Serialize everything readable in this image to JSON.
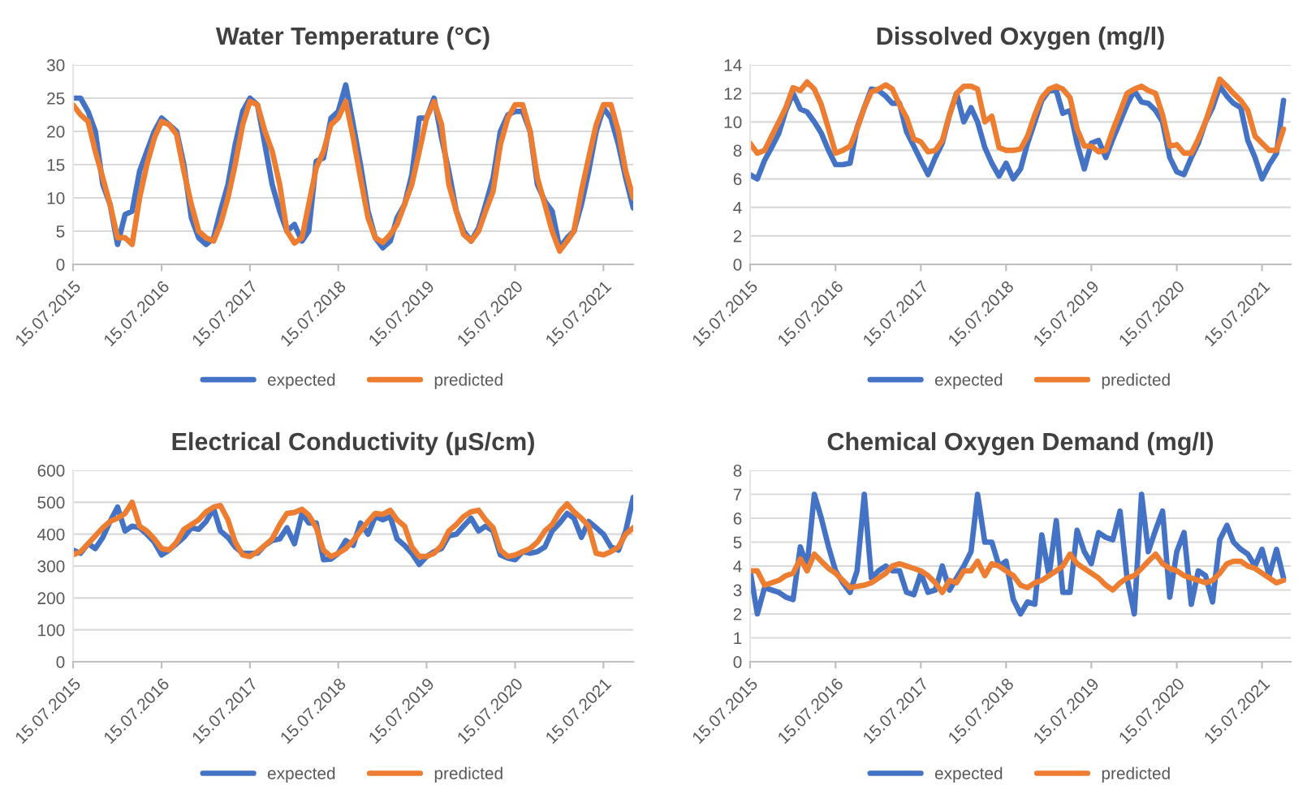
{
  "chart_data": [
    {
      "type": "line",
      "title": "Water Temperature (°C)",
      "x": [
        "2015-07-15",
        "2015-08-15",
        "2015-09-15",
        "2015-10-15",
        "2015-11-15",
        "2015-12-15",
        "2016-01-15",
        "2016-02-15",
        "2016-03-15",
        "2016-04-15",
        "2016-05-15",
        "2016-06-15",
        "2016-07-15",
        "2016-08-15",
        "2016-09-15",
        "2016-10-15",
        "2016-11-15",
        "2016-12-15",
        "2017-01-15",
        "2017-02-15",
        "2017-03-15",
        "2017-04-15",
        "2017-05-15",
        "2017-06-15",
        "2017-07-15",
        "2017-08-15",
        "2017-09-15",
        "2017-10-15",
        "2017-11-15",
        "2017-12-15",
        "2018-01-15",
        "2018-02-15",
        "2018-03-15",
        "2018-04-15",
        "2018-05-15",
        "2018-06-15",
        "2018-07-15",
        "2018-08-15",
        "2018-09-15",
        "2018-10-15",
        "2018-11-15",
        "2018-12-15",
        "2019-01-15",
        "2019-02-15",
        "2019-03-15",
        "2019-04-15",
        "2019-05-15",
        "2019-06-15",
        "2019-07-15",
        "2019-08-15",
        "2019-09-15",
        "2019-10-15",
        "2019-11-15",
        "2019-12-15",
        "2020-01-15",
        "2020-02-15",
        "2020-03-15",
        "2020-04-15",
        "2020-05-15",
        "2020-06-15",
        "2020-07-15",
        "2020-08-15",
        "2020-09-15",
        "2020-10-15",
        "2020-11-15",
        "2020-12-15",
        "2021-01-15",
        "2021-02-15",
        "2021-03-15",
        "2021-04-15",
        "2021-05-15",
        "2021-06-15",
        "2021-07-15",
        "2021-08-15",
        "2021-09-15",
        "2021-10-15",
        "2021-11-15"
      ],
      "series": [
        {
          "name": "expected",
          "color": "#4472c4",
          "values": [
            25,
            25,
            23,
            20,
            12,
            9,
            3,
            7.5,
            8,
            14,
            17,
            20,
            22,
            21,
            20,
            15,
            7,
            4,
            3,
            4,
            8,
            12,
            18,
            23,
            25,
            24,
            18,
            12,
            8,
            5,
            6,
            3.5,
            5,
            15.5,
            16,
            22,
            23,
            27,
            21,
            15,
            8,
            4,
            2.5,
            3.5,
            7,
            9,
            13.5,
            22,
            22,
            25,
            19,
            14,
            8,
            5,
            3.5,
            5.5,
            9,
            13,
            20,
            22.5,
            23,
            23,
            20,
            12,
            9.5,
            8,
            2.5,
            4,
            5,
            9,
            14,
            20,
            23.5,
            22,
            18,
            13,
            8.5
          ]
        },
        {
          "name": "predicted",
          "color": "#ed7d31",
          "values": [
            24,
            22.5,
            21.5,
            17,
            13,
            9,
            4,
            4,
            3,
            10,
            15,
            19,
            21.5,
            21,
            19.5,
            14,
            9,
            5,
            4,
            3.5,
            6,
            10,
            15,
            21,
            24.5,
            24,
            20,
            17,
            12,
            5,
            3.2,
            4,
            9,
            14.5,
            17,
            21,
            22,
            24.5,
            19,
            13,
            7,
            4,
            3.3,
            4.5,
            6,
            9,
            12,
            17,
            22,
            24.5,
            21,
            12,
            8,
            4.5,
            3.5,
            5,
            8,
            11,
            18,
            22,
            24,
            24,
            20,
            13,
            9,
            5,
            2,
            3.5,
            5,
            11,
            16,
            21,
            24,
            24,
            20,
            14,
            10
          ]
        }
      ],
      "xlim": [
        "2015-07-15",
        "2021-11-15"
      ],
      "xticks": [
        {
          "value": "2015-07-15",
          "label": "15.07.2015"
        },
        {
          "value": "2016-07-15",
          "label": "15.07.2016"
        },
        {
          "value": "2017-07-15",
          "label": "15.07.2017"
        },
        {
          "value": "2018-07-15",
          "label": "15.07.2018"
        },
        {
          "value": "2019-07-15",
          "label": "15.07.2019"
        },
        {
          "value": "2020-07-15",
          "label": "15.07.2020"
        },
        {
          "value": "2021-07-15",
          "label": "15.07.2021"
        }
      ],
      "ylim": [
        0,
        30
      ],
      "yticks": [
        0,
        5,
        10,
        15,
        20,
        25,
        30
      ],
      "grid": "y",
      "legend": "bottom",
      "marker": "none",
      "line_style": "solid"
    },
    {
      "type": "line",
      "title": "Dissolved Oxygen (mg/l)",
      "x": [
        "2015-07-15",
        "2015-08-15",
        "2015-09-15",
        "2015-10-15",
        "2015-11-15",
        "2015-12-15",
        "2016-01-15",
        "2016-02-15",
        "2016-03-15",
        "2016-04-15",
        "2016-05-15",
        "2016-06-15",
        "2016-07-15",
        "2016-08-15",
        "2016-09-15",
        "2016-10-15",
        "2016-11-15",
        "2016-12-15",
        "2017-01-15",
        "2017-02-15",
        "2017-03-15",
        "2017-04-15",
        "2017-05-15",
        "2017-06-15",
        "2017-07-15",
        "2017-08-15",
        "2017-09-15",
        "2017-10-15",
        "2017-11-15",
        "2017-12-15",
        "2018-01-15",
        "2018-02-15",
        "2018-03-15",
        "2018-04-15",
        "2018-05-15",
        "2018-06-15",
        "2018-07-15",
        "2018-08-15",
        "2018-09-15",
        "2018-10-15",
        "2018-11-15",
        "2018-12-15",
        "2019-01-15",
        "2019-02-15",
        "2019-03-15",
        "2019-04-15",
        "2019-05-15",
        "2019-06-15",
        "2019-07-15",
        "2019-08-15",
        "2019-09-15",
        "2019-10-15",
        "2019-11-15",
        "2019-12-15",
        "2020-01-15",
        "2020-02-15",
        "2020-03-15",
        "2020-04-15",
        "2020-05-15",
        "2020-06-15",
        "2020-07-15",
        "2020-08-15",
        "2020-09-15",
        "2020-10-15",
        "2020-11-15",
        "2020-12-15",
        "2021-01-15",
        "2021-02-15",
        "2021-03-15",
        "2021-04-15",
        "2021-05-15",
        "2021-06-15",
        "2021-07-15",
        "2021-08-15",
        "2021-09-15",
        "2021-10-15"
      ],
      "series": [
        {
          "name": "expected",
          "color": "#4472c4",
          "values": [
            6.3,
            6.0,
            7.3,
            8.2,
            9.2,
            10.8,
            12,
            10.9,
            10.7,
            10,
            9.2,
            8,
            7,
            7,
            7.1,
            9.6,
            11,
            12.3,
            12.2,
            11.8,
            11.3,
            11.3,
            9.3,
            8.3,
            7.3,
            6.3,
            7.5,
            8.5,
            10.5,
            12,
            10,
            11,
            10,
            8.2,
            7.1,
            6.2,
            7.1,
            6.0,
            6.7,
            8.5,
            10,
            11.5,
            12.2,
            12.2,
            10.6,
            10.8,
            8.5,
            6.7,
            8.5,
            8.7,
            7.5,
            8.8,
            10,
            11.2,
            12.2,
            11.4,
            11.3,
            10.8,
            10,
            7.5,
            6.5,
            6.3,
            7.5,
            8.5,
            10,
            11,
            12.5,
            11.8,
            11.3,
            11,
            8.7,
            7.5,
            6,
            7,
            7.8,
            11.5
          ]
        },
        {
          "name": "predicted",
          "color": "#ed7d31",
          "values": [
            8.5,
            7.8,
            8,
            9,
            10,
            11,
            12.4,
            12.2,
            12.8,
            12.3,
            11.2,
            9.5,
            7.8,
            8,
            8.3,
            9.5,
            11,
            12.1,
            12.3,
            12.6,
            12.3,
            11.2,
            10.3,
            8.8,
            8.6,
            7.9,
            8,
            8.7,
            10.5,
            12,
            12.5,
            12.5,
            12.3,
            10,
            10.4,
            8.2,
            8,
            8,
            8.1,
            9,
            10.5,
            11.7,
            12.3,
            12.5,
            12.3,
            11.7,
            9.5,
            8.3,
            8.3,
            7.9,
            8,
            9.4,
            10.7,
            12,
            12.3,
            12.5,
            12.2,
            12,
            10.5,
            8.3,
            8.4,
            7.8,
            7.8,
            8.8,
            10,
            11.5,
            13,
            12.5,
            12,
            11.5,
            10.8,
            9,
            8.5,
            8,
            8,
            9.5
          ]
        }
      ],
      "xlim": [
        "2015-07-15",
        "2021-11-15"
      ],
      "xticks": [
        {
          "value": "2015-07-15",
          "label": "15.07.2015"
        },
        {
          "value": "2016-07-15",
          "label": "15.07.2016"
        },
        {
          "value": "2017-07-15",
          "label": "15.07.2017"
        },
        {
          "value": "2018-07-15",
          "label": "15.07.2018"
        },
        {
          "value": "2019-07-15",
          "label": "15.07.2019"
        },
        {
          "value": "2020-07-15",
          "label": "15.07.2020"
        },
        {
          "value": "2021-07-15",
          "label": "15.07.2021"
        }
      ],
      "ylim": [
        0,
        14
      ],
      "yticks": [
        0,
        2,
        4,
        6,
        8,
        10,
        12,
        14
      ],
      "grid": "y",
      "legend": "bottom",
      "marker": "none",
      "line_style": "solid"
    },
    {
      "type": "line",
      "title": "Electrical Conductivity (µS/cm)",
      "x": [
        "2015-07-15",
        "2015-08-15",
        "2015-09-15",
        "2015-10-15",
        "2015-11-15",
        "2015-12-15",
        "2016-01-15",
        "2016-02-15",
        "2016-03-15",
        "2016-04-15",
        "2016-05-15",
        "2016-06-15",
        "2016-07-15",
        "2016-08-15",
        "2016-09-15",
        "2016-10-15",
        "2016-11-15",
        "2016-12-15",
        "2017-01-15",
        "2017-02-15",
        "2017-03-15",
        "2017-04-15",
        "2017-05-15",
        "2017-06-15",
        "2017-07-15",
        "2017-08-15",
        "2017-09-15",
        "2017-10-15",
        "2017-11-15",
        "2017-12-15",
        "2018-01-15",
        "2018-02-15",
        "2018-03-15",
        "2018-04-15",
        "2018-05-15",
        "2018-06-15",
        "2018-07-15",
        "2018-08-15",
        "2018-09-15",
        "2018-10-15",
        "2018-11-15",
        "2018-12-15",
        "2019-01-15",
        "2019-02-15",
        "2019-03-15",
        "2019-04-15",
        "2019-05-15",
        "2019-06-15",
        "2019-07-15",
        "2019-08-15",
        "2019-09-15",
        "2019-10-15",
        "2019-11-15",
        "2019-12-15",
        "2020-01-15",
        "2020-02-15",
        "2020-03-15",
        "2020-04-15",
        "2020-05-15",
        "2020-06-15",
        "2020-07-15",
        "2020-08-15",
        "2020-09-15",
        "2020-10-15",
        "2020-11-15",
        "2020-12-15",
        "2021-01-15",
        "2021-02-15",
        "2021-03-15",
        "2021-04-15",
        "2021-05-15",
        "2021-06-15",
        "2021-07-15",
        "2021-08-15",
        "2021-09-15",
        "2021-10-15",
        "2021-11-15"
      ],
      "series": [
        {
          "name": "expected",
          "color": "#4472c4",
          "values": [
            350,
            340,
            370,
            355,
            390,
            440,
            485,
            410,
            425,
            420,
            400,
            375,
            335,
            350,
            370,
            390,
            420,
            415,
            440,
            480,
            410,
            390,
            360,
            340,
            340,
            340,
            365,
            380,
            385,
            420,
            370,
            465,
            435,
            435,
            320,
            322,
            340,
            380,
            365,
            435,
            400,
            455,
            445,
            455,
            385,
            365,
            340,
            305,
            330,
            345,
            355,
            395,
            400,
            425,
            450,
            410,
            425,
            410,
            335,
            325,
            320,
            345,
            340,
            345,
            360,
            410,
            435,
            465,
            450,
            390,
            440,
            420,
            400,
            360,
            350,
            410,
            515
          ]
        },
        {
          "name": "predicted",
          "color": "#ed7d31",
          "values": [
            335,
            345,
            370,
            395,
            420,
            440,
            450,
            465,
            500,
            425,
            410,
            385,
            355,
            350,
            375,
            415,
            430,
            445,
            470,
            485,
            490,
            445,
            375,
            335,
            330,
            345,
            365,
            385,
            430,
            465,
            468,
            478,
            460,
            420,
            350,
            330,
            340,
            355,
            380,
            410,
            440,
            465,
            462,
            475,
            445,
            425,
            360,
            330,
            330,
            340,
            365,
            410,
            430,
            455,
            470,
            475,
            445,
            420,
            350,
            330,
            335,
            345,
            355,
            375,
            410,
            430,
            470,
            495,
            470,
            450,
            425,
            340,
            335,
            345,
            360,
            400,
            420
          ]
        }
      ],
      "xlim": [
        "2015-07-15",
        "2021-11-15"
      ],
      "xticks": [
        {
          "value": "2015-07-15",
          "label": "15.07.2015"
        },
        {
          "value": "2016-07-15",
          "label": "15.07.2016"
        },
        {
          "value": "2017-07-15",
          "label": "15.07.2017"
        },
        {
          "value": "2018-07-15",
          "label": "15.07.2018"
        },
        {
          "value": "2019-07-15",
          "label": "15.07.2019"
        },
        {
          "value": "2020-07-15",
          "label": "15.07.2020"
        },
        {
          "value": "2021-07-15",
          "label": "15.07.2021"
        }
      ],
      "ylim": [
        0,
        600
      ],
      "yticks": [
        0,
        100,
        200,
        300,
        400,
        500,
        600
      ],
      "grid": "y",
      "legend": "bottom",
      "marker": "none",
      "line_style": "solid"
    },
    {
      "type": "line",
      "title": "Chemical Oxygen Demand (mg/l)",
      "x": [
        "2015-07-15",
        "2015-08-15",
        "2015-09-15",
        "2015-10-15",
        "2015-11-15",
        "2015-12-15",
        "2016-01-15",
        "2016-02-15",
        "2016-03-15",
        "2016-04-15",
        "2016-05-15",
        "2016-06-15",
        "2016-07-15",
        "2016-08-15",
        "2016-09-15",
        "2016-10-15",
        "2016-11-15",
        "2016-12-15",
        "2017-01-15",
        "2017-02-15",
        "2017-03-15",
        "2017-04-15",
        "2017-05-15",
        "2017-06-15",
        "2017-07-15",
        "2017-08-15",
        "2017-09-15",
        "2017-10-15",
        "2017-11-15",
        "2017-12-15",
        "2018-01-15",
        "2018-02-15",
        "2018-03-15",
        "2018-04-15",
        "2018-05-15",
        "2018-06-15",
        "2018-07-15",
        "2018-08-15",
        "2018-09-15",
        "2018-10-15",
        "2018-11-15",
        "2018-12-15",
        "2019-01-15",
        "2019-02-15",
        "2019-03-15",
        "2019-04-15",
        "2019-05-15",
        "2019-06-15",
        "2019-07-15",
        "2019-08-15",
        "2019-09-15",
        "2019-10-15",
        "2019-11-15",
        "2019-12-15",
        "2020-01-15",
        "2020-02-15",
        "2020-03-15",
        "2020-04-15",
        "2020-05-15",
        "2020-06-15",
        "2020-07-15",
        "2020-08-15",
        "2020-09-15",
        "2020-10-15",
        "2020-11-15",
        "2020-12-15",
        "2021-01-15",
        "2021-02-15",
        "2021-03-15",
        "2021-04-15",
        "2021-05-15",
        "2021-06-15",
        "2021-07-15",
        "2021-08-15",
        "2021-09-15",
        "2021-10-15"
      ],
      "series": [
        {
          "name": "expected",
          "color": "#4472c4",
          "values": [
            3.8,
            2,
            3.1,
            3,
            2.9,
            2.7,
            2.6,
            4.8,
            4,
            7,
            6,
            4.8,
            3.8,
            3.3,
            2.9,
            3.8,
            7,
            3.5,
            3.8,
            4,
            3.8,
            3.8,
            2.9,
            2.8,
            3.7,
            2.9,
            3,
            4,
            3,
            3.5,
            4,
            4.6,
            7,
            5,
            5,
            4,
            4.2,
            2.6,
            2,
            2.5,
            2.4,
            5.3,
            3.6,
            5.9,
            2.9,
            2.9,
            5.5,
            4.6,
            4.1,
            5.4,
            5.2,
            5.1,
            6.3,
            3.5,
            2,
            7,
            4.6,
            5.5,
            6.3,
            2.7,
            4.6,
            5.4,
            2.4,
            3.8,
            3.6,
            2.5,
            5.1,
            5.7,
            5,
            4.7,
            4.5,
            4,
            4.7,
            3.6,
            4.7,
            3.5
          ]
        },
        {
          "name": "predicted",
          "color": "#ed7d31",
          "values": [
            3.8,
            3.8,
            3.2,
            3.3,
            3.4,
            3.6,
            3.7,
            4.3,
            3.8,
            4.5,
            4.2,
            3.9,
            3.7,
            3.4,
            3.1,
            3.15,
            3.2,
            3.3,
            3.5,
            3.7,
            4,
            4.1,
            4,
            3.9,
            3.8,
            3.6,
            3.3,
            2.9,
            3.4,
            3.3,
            3.8,
            3.8,
            4.2,
            3.6,
            4.1,
            4,
            3.8,
            3.6,
            3.2,
            3.1,
            3.3,
            3.4,
            3.6,
            3.8,
            4,
            4.5,
            4.1,
            3.9,
            3.7,
            3.5,
            3.2,
            3,
            3.3,
            3.5,
            3.6,
            3.9,
            4.2,
            4.5,
            4.1,
            3.9,
            3.8,
            3.6,
            3.5,
            3.4,
            3.3,
            3.4,
            3.7,
            4.1,
            4.2,
            4.2,
            4,
            3.9,
            3.7,
            3.5,
            3.3,
            3.4
          ]
        }
      ],
      "xlim": [
        "2015-07-15",
        "2021-11-15"
      ],
      "xticks": [
        {
          "value": "2015-07-15",
          "label": "15.07.2015"
        },
        {
          "value": "2016-07-15",
          "label": "15.07.2016"
        },
        {
          "value": "2017-07-15",
          "label": "15.07.2017"
        },
        {
          "value": "2018-07-15",
          "label": "15.07.2018"
        },
        {
          "value": "2019-07-15",
          "label": "15.07.2019"
        },
        {
          "value": "2020-07-15",
          "label": "15.07.2020"
        },
        {
          "value": "2021-07-15",
          "label": "15.07.2021"
        }
      ],
      "ylim": [
        0,
        8
      ],
      "yticks": [
        0,
        1,
        2,
        3,
        4,
        5,
        6,
        7,
        8
      ],
      "grid": "y",
      "legend": "bottom",
      "marker": "none",
      "line_style": "solid"
    }
  ]
}
